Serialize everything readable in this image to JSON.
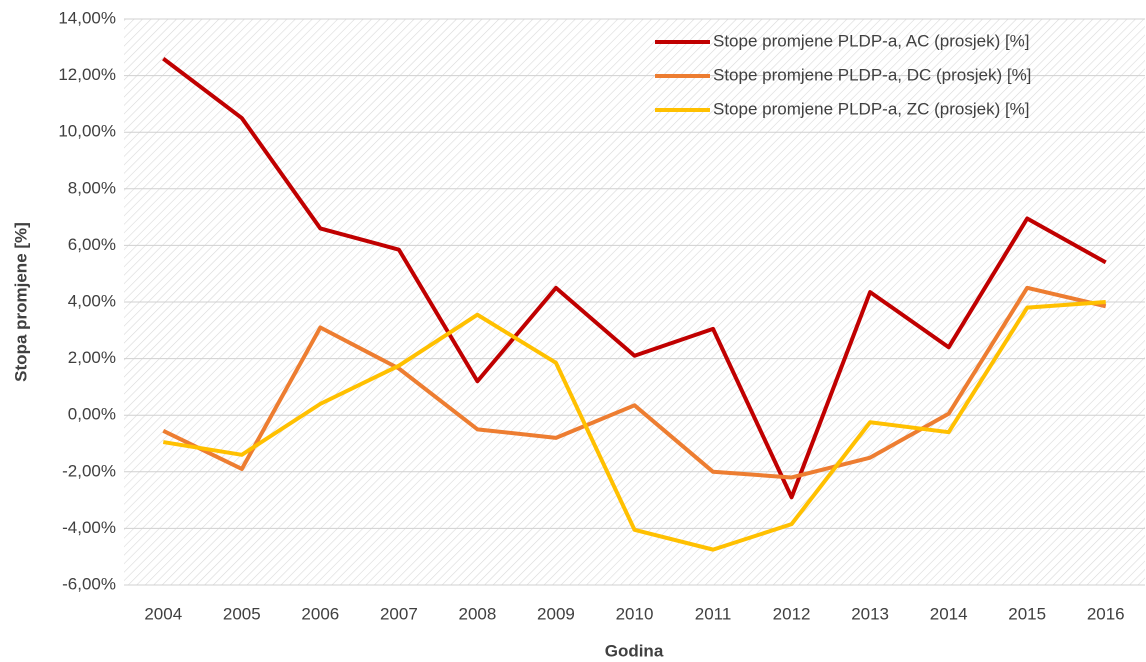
{
  "chart_data": {
    "type": "line",
    "x_label": "Godina",
    "y_label": "Stopa promjene [%]",
    "categories": [
      "2004",
      "2005",
      "2006",
      "2007",
      "2008",
      "2009",
      "2010",
      "2011",
      "2012",
      "2013",
      "2014",
      "2015",
      "2016"
    ],
    "series": [
      {
        "name": "Stope promjene PLDP-a, AC (prosjek) [%]",
        "color": "#c00000",
        "values": [
          12.6,
          10.5,
          6.6,
          5.85,
          1.2,
          4.5,
          2.1,
          3.05,
          -2.9,
          4.35,
          2.4,
          6.95,
          5.4
        ]
      },
      {
        "name": "Stope promjene PLDP-a, DC (prosjek) [%]",
        "color": "#ed7d31",
        "values": [
          -0.55,
          -1.9,
          3.1,
          1.65,
          -0.5,
          -0.8,
          0.35,
          -2.0,
          -2.2,
          -1.5,
          0.05,
          4.5,
          3.85
        ]
      },
      {
        "name": "Stope promjene PLDP-a, ZC (prosjek) [%]",
        "color": "#ffc000",
        "values": [
          -0.95,
          -1.4,
          0.4,
          1.75,
          3.55,
          1.85,
          -4.05,
          -4.75,
          -3.85,
          -0.25,
          -0.6,
          3.8,
          4.0
        ]
      }
    ],
    "ylim": [
      -6,
      14
    ],
    "yticks": [
      {
        "value": -6,
        "label": "-6,00%"
      },
      {
        "value": -4,
        "label": "-4,00%"
      },
      {
        "value": -2,
        "label": "-2,00%"
      },
      {
        "value": 0,
        "label": "0,00%"
      },
      {
        "value": 2,
        "label": "2,00%"
      },
      {
        "value": 4,
        "label": "4,00%"
      },
      {
        "value": 6,
        "label": "6,00%"
      },
      {
        "value": 8,
        "label": "8,00%"
      },
      {
        "value": 10,
        "label": "10,00%"
      },
      {
        "value": 12,
        "label": "12,00%"
      },
      {
        "value": 14,
        "label": "14,00%"
      }
    ],
    "grid": true,
    "legend": "top-right"
  }
}
